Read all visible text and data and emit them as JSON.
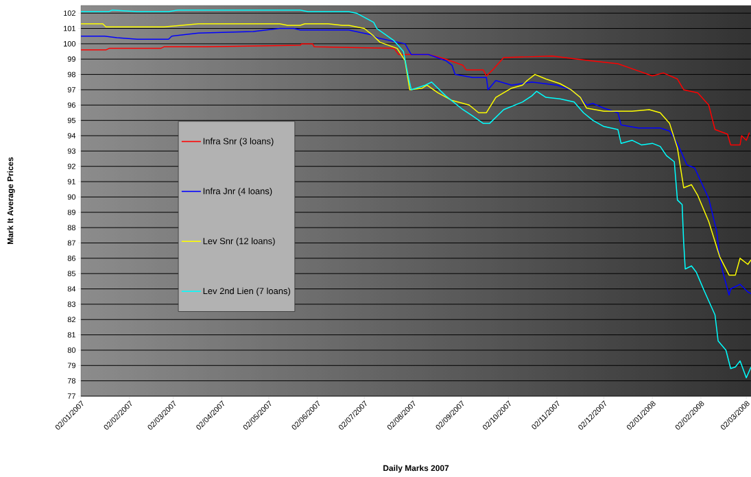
{
  "chart_data": {
    "type": "line",
    "xlabel": "Daily Marks 2007",
    "ylabel": "Mark It Average Prices",
    "xlim": [
      "2007-01-02",
      "2008-03-05"
    ],
    "ylim": [
      77,
      102.5
    ],
    "xticks": [
      {
        "value": "2007-01-02",
        "label": "02/01/2007"
      },
      {
        "value": "2007-02-02",
        "label": "02/02/2007"
      },
      {
        "value": "2007-03-02",
        "label": "02/03/2007"
      },
      {
        "value": "2007-04-02",
        "label": "02/04/2007"
      },
      {
        "value": "2007-05-02",
        "label": "02/05/2007"
      },
      {
        "value": "2007-06-02",
        "label": "02/06/2007"
      },
      {
        "value": "2007-07-02",
        "label": "02/07/2007"
      },
      {
        "value": "2007-08-02",
        "label": "02/08/2007"
      },
      {
        "value": "2007-09-02",
        "label": "02/09/2007"
      },
      {
        "value": "2007-10-02",
        "label": "02/10/2007"
      },
      {
        "value": "2007-11-02",
        "label": "02/11/2007"
      },
      {
        "value": "2007-12-02",
        "label": "02/12/2007"
      },
      {
        "value": "2008-01-02",
        "label": "02/01/2008"
      },
      {
        "value": "2008-02-02",
        "label": "02/02/2008"
      },
      {
        "value": "2008-03-02",
        "label": "02/03/2008"
      }
    ],
    "yticks": [
      77,
      78,
      79,
      80,
      81,
      82,
      83,
      84,
      85,
      86,
      87,
      88,
      89,
      90,
      91,
      92,
      93,
      94,
      95,
      96,
      97,
      98,
      99,
      100,
      101,
      102
    ],
    "grid": "y",
    "legend": "left",
    "series": [
      {
        "name": "Infra Snr (3 loans)",
        "color": "#ff0000",
        "x": [
          "2007-01-02",
          "2007-01-18",
          "2007-01-20",
          "2007-02-22",
          "2007-02-24",
          "2007-03-23",
          "2007-05-22",
          "2007-05-23",
          "2007-05-30",
          "2007-05-31",
          "2007-07-21",
          "2007-07-24",
          "2007-08-12",
          "2007-08-23",
          "2007-09-03",
          "2007-09-05",
          "2007-09-16",
          "2007-09-18",
          "2007-09-22",
          "2007-09-29",
          "2007-10-30",
          "2007-11-23",
          "2007-12-11",
          "2007-12-22",
          "2008-01-02",
          "2008-01-09",
          "2008-01-18",
          "2008-01-22",
          "2008-01-31",
          "2008-02-07",
          "2008-02-11",
          "2008-02-19",
          "2008-02-21",
          "2008-02-27",
          "2008-02-28",
          "2008-03-02",
          "2008-03-04"
        ],
        "values": [
          99.6,
          99.6,
          99.7,
          99.7,
          99.8,
          99.8,
          99.9,
          100.0,
          100.0,
          99.8,
          99.7,
          99.3,
          99.3,
          99.0,
          98.6,
          98.3,
          98.3,
          97.9,
          98.3,
          99.1,
          99.2,
          98.9,
          98.7,
          98.3,
          97.9,
          98.1,
          97.7,
          97.0,
          96.8,
          96.0,
          94.4,
          94.1,
          93.4,
          93.4,
          94.0,
          93.7,
          94.2
        ]
      },
      {
        "name": "Infra Jnr (4 loans)",
        "color": "#0000ff",
        "x": [
          "2007-01-02",
          "2007-01-17",
          "2007-01-25",
          "2007-02-07",
          "2007-02-27",
          "2007-03-01",
          "2007-03-18",
          "2007-04-22",
          "2007-05-09",
          "2007-05-18",
          "2007-05-22",
          "2007-06-22",
          "2007-07-06",
          "2007-07-10",
          "2007-07-28",
          "2007-08-01",
          "2007-08-12",
          "2007-08-23",
          "2007-08-27",
          "2007-08-29",
          "2007-09-09",
          "2007-09-18",
          "2007-09-19",
          "2007-09-24",
          "2007-10-04",
          "2007-10-17",
          "2007-11-02",
          "2007-11-11",
          "2007-11-17",
          "2007-11-21",
          "2007-11-25",
          "2007-12-02",
          "2007-12-11",
          "2007-12-13",
          "2007-12-24",
          "2008-01-07",
          "2008-01-13",
          "2008-01-18",
          "2008-01-24",
          "2008-01-29",
          "2008-02-02",
          "2008-02-07",
          "2008-02-12",
          "2008-02-14",
          "2008-02-16",
          "2008-02-20",
          "2008-02-21",
          "2008-02-27",
          "2008-03-03",
          "2008-03-05"
        ],
        "values": [
          100.5,
          100.5,
          100.4,
          100.3,
          100.3,
          100.5,
          100.7,
          100.8,
          101.0,
          101.0,
          100.9,
          100.9,
          100.6,
          100.4,
          100.0,
          99.3,
          99.3,
          98.9,
          98.6,
          98.0,
          97.8,
          97.8,
          97.0,
          97.6,
          97.3,
          97.5,
          97.3,
          97.0,
          96.5,
          96.0,
          96.1,
          95.8,
          95.5,
          94.7,
          94.5,
          94.5,
          94.3,
          93.5,
          92.1,
          91.9,
          91.0,
          89.9,
          87.8,
          86.1,
          85.1,
          83.6,
          84.0,
          84.3,
          83.8,
          83.7
        ]
      },
      {
        "name": "Lev Snr (12 loans)",
        "color": "#ffff00",
        "x": [
          "2007-01-02",
          "2007-01-16",
          "2007-01-18",
          "2007-02-24",
          "2007-03-07",
          "2007-03-18",
          "2007-05-09",
          "2007-05-14",
          "2007-05-22",
          "2007-05-25",
          "2007-06-09",
          "2007-06-18",
          "2007-06-22",
          "2007-07-02",
          "2007-07-08",
          "2007-07-12",
          "2007-07-23",
          "2007-07-28",
          "2007-07-31",
          "2007-08-08",
          "2007-08-11",
          "2007-08-18",
          "2007-08-27",
          "2007-09-07",
          "2007-09-13",
          "2007-09-18",
          "2007-09-24",
          "2007-10-04",
          "2007-10-11",
          "2007-10-14",
          "2007-10-19",
          "2007-10-26",
          "2007-11-04",
          "2007-11-11",
          "2007-11-17",
          "2007-11-21",
          "2007-12-02",
          "2007-12-20",
          "2007-12-31",
          "2008-01-07",
          "2008-01-13",
          "2008-01-18",
          "2008-01-22",
          "2008-01-27",
          "2008-01-31",
          "2008-02-07",
          "2008-02-14",
          "2008-02-20",
          "2008-02-24",
          "2008-02-27",
          "2008-03-03",
          "2008-03-05"
        ],
        "values": [
          101.3,
          101.3,
          101.1,
          101.1,
          101.2,
          101.3,
          101.3,
          101.2,
          101.2,
          101.3,
          101.3,
          101.2,
          101.2,
          101.0,
          100.5,
          100.1,
          99.7,
          98.9,
          97.0,
          97.1,
          97.3,
          96.8,
          96.3,
          96.0,
          95.5,
          95.5,
          96.5,
          97.1,
          97.3,
          97.6,
          98.0,
          97.7,
          97.4,
          97.0,
          96.5,
          95.8,
          95.6,
          95.6,
          95.7,
          95.5,
          94.8,
          93.2,
          90.6,
          90.8,
          90.1,
          88.4,
          86.1,
          84.9,
          84.9,
          86.0,
          85.6,
          85.9
        ]
      },
      {
        "name": "Lev 2nd Lien (7 loans)",
        "color": "#00ffff",
        "x": [
          "2007-01-02",
          "2007-01-20",
          "2007-01-22",
          "2007-02-07",
          "2007-02-27",
          "2007-03-05",
          "2007-03-18",
          "2007-05-22",
          "2007-05-27",
          "2007-06-22",
          "2007-06-27",
          "2007-07-08",
          "2007-07-10",
          "2007-07-21",
          "2007-07-27",
          "2007-07-30",
          "2007-08-01",
          "2007-08-10",
          "2007-08-14",
          "2007-08-23",
          "2007-09-03",
          "2007-09-09",
          "2007-09-16",
          "2007-09-20",
          "2007-09-29",
          "2007-10-11",
          "2007-10-17",
          "2007-10-20",
          "2007-10-26",
          "2007-11-04",
          "2007-11-13",
          "2007-11-19",
          "2007-11-25",
          "2007-12-02",
          "2007-12-11",
          "2007-12-13",
          "2007-12-20",
          "2007-12-26",
          "2008-01-02",
          "2008-01-07",
          "2008-01-11",
          "2008-01-16",
          "2008-01-18",
          "2008-01-21",
          "2008-01-22",
          "2008-01-23",
          "2008-01-27",
          "2008-01-30",
          "2008-02-04",
          "2008-02-11",
          "2008-02-13",
          "2008-02-18",
          "2008-02-21",
          "2008-02-24",
          "2008-02-27",
          "2008-03-02",
          "2008-03-05"
        ],
        "values": [
          102.1,
          102.1,
          102.2,
          102.1,
          102.1,
          102.2,
          102.2,
          102.2,
          102.1,
          102.1,
          102.0,
          101.4,
          101.0,
          100.2,
          99.5,
          97.9,
          97.0,
          97.3,
          97.5,
          96.6,
          95.7,
          95.3,
          94.8,
          94.8,
          95.7,
          96.2,
          96.6,
          96.9,
          96.5,
          96.4,
          96.2,
          95.5,
          95.0,
          94.6,
          94.4,
          93.5,
          93.7,
          93.4,
          93.5,
          93.3,
          92.7,
          92.3,
          89.8,
          89.5,
          87.0,
          85.3,
          85.5,
          85.1,
          83.9,
          82.3,
          80.6,
          80.0,
          78.8,
          78.9,
          79.3,
          78.2,
          78.9
        ]
      }
    ]
  }
}
